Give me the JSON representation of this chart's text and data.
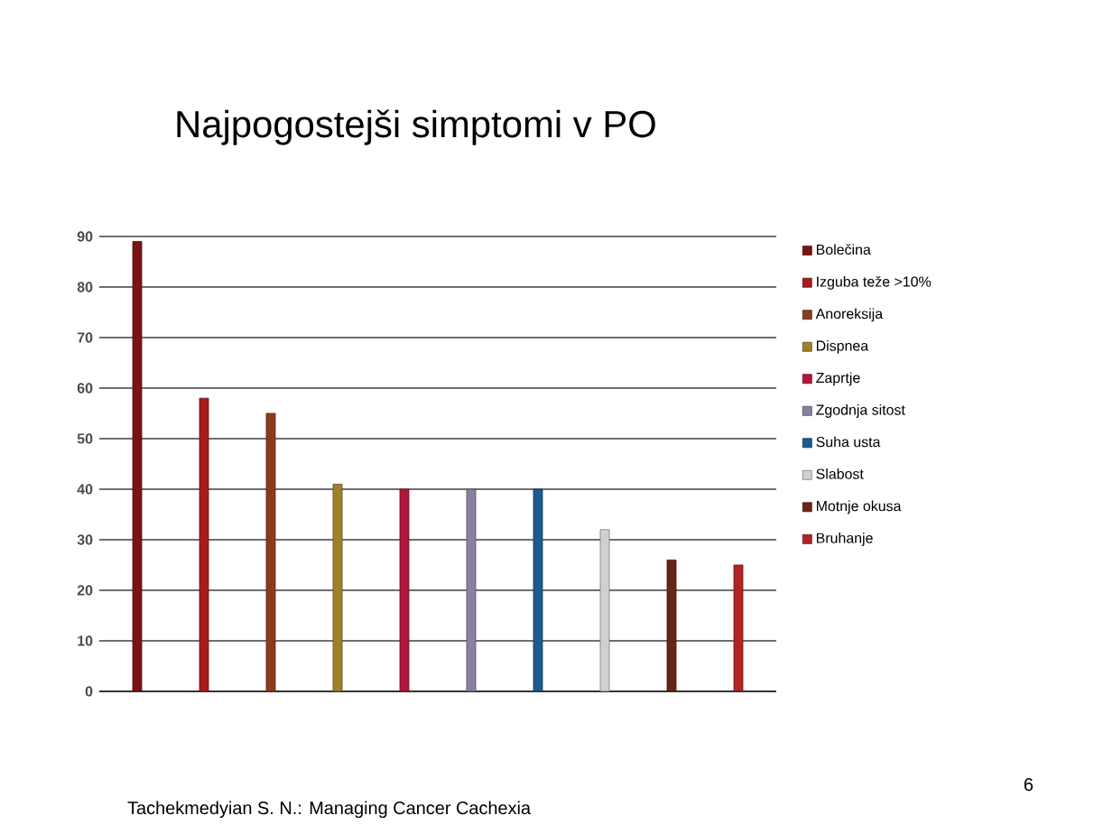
{
  "chart_data": {
    "type": "bar",
    "title": "Najpogostejši simptomi v PO",
    "categories": [
      null
    ],
    "series": [
      {
        "name": "Bolečina",
        "color": "#7a1414",
        "values": [
          89
        ]
      },
      {
        "name": "Izguba teže >10%",
        "color": "#a81c1c",
        "values": [
          58
        ]
      },
      {
        "name": "Anoreksija",
        "color": "#8c3a1c",
        "values": [
          55
        ]
      },
      {
        "name": "Dispnea",
        "color": "#a08028",
        "values": [
          41
        ]
      },
      {
        "name": "Zaprtje",
        "color": "#b0183a",
        "values": [
          40
        ]
      },
      {
        "name": "Zgodnja sitost",
        "color": "#8a80a0",
        "values": [
          40
        ]
      },
      {
        "name": "Suha usta",
        "color": "#1e5a8c",
        "values": [
          40
        ]
      },
      {
        "name": "Slabost",
        "color": "#d0d0d0",
        "values": [
          32
        ]
      },
      {
        "name": "Motnje okusa",
        "color": "#6a2414",
        "values": [
          26
        ]
      },
      {
        "name": "Bruhanje",
        "color": "#b02424",
        "values": [
          25
        ]
      }
    ],
    "ylim": [
      0,
      90
    ],
    "yticks": [
      0,
      10,
      20,
      30,
      40,
      50,
      60,
      70,
      80,
      90
    ],
    "grid": "y",
    "legend": "right",
    "annotations": [
      "Tachekmedyian S. N.: Managing Cancer Cachexia",
      "6"
    ]
  }
}
